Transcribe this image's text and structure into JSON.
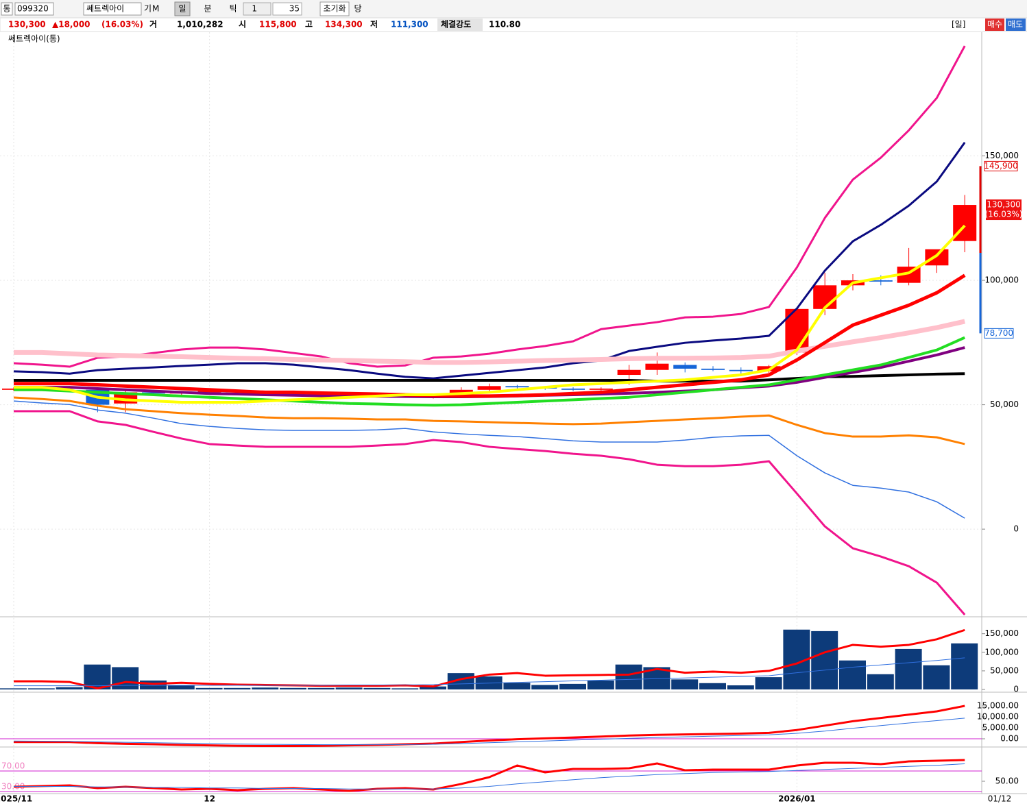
{
  "toolbar": {
    "market": "통",
    "code": "099320",
    "name": "쎄트렉아이",
    "buttons": [
      "기",
      "M"
    ],
    "periods": [
      "일",
      "분",
      "틱"
    ],
    "unit": "1",
    "count": "35",
    "reset": "초기화",
    "extra": "당"
  },
  "quote": {
    "price": "130,300",
    "change": "▲18,000",
    "rate": "(16.03%)",
    "volume_label": "거",
    "volume": "1,010,282",
    "open_label": "시",
    "open": "115,800",
    "high_label": "고",
    "high": "134,300",
    "low_label": "저",
    "low": "111,300",
    "strength_label": "체결강도",
    "strength": "110.80",
    "period": "[일]",
    "buy": "매수",
    "sell": "매도"
  },
  "current_date": "01/12",
  "chart_data": [
    {
      "type": "candlestick",
      "title": "쎄트렉아이(통)",
      "categories": [
        "2025/11",
        null,
        null,
        null,
        null,
        null,
        null,
        "12",
        null,
        null,
        null,
        null,
        null,
        null,
        null,
        null,
        null,
        null,
        null,
        null,
        null,
        null,
        null,
        null,
        null,
        null,
        null,
        null,
        "2026/01",
        null,
        null,
        null,
        null,
        null,
        null
      ],
      "open": [
        56000,
        56500,
        57000,
        56000,
        50500,
        55000,
        54500,
        55000,
        55500,
        55000,
        54500,
        54000,
        53500,
        53800,
        53500,
        53000,
        53200,
        56000,
        57500,
        57000,
        56500,
        56000,
        62000,
        64000,
        66000,
        64500,
        64000,
        63500,
        71000,
        88500,
        98000,
        100000,
        99000,
        106000,
        115800
      ],
      "high": [
        57000,
        57500,
        57500,
        56500,
        56000,
        56000,
        55500,
        56000,
        56000,
        55500,
        55000,
        54500,
        54000,
        54200,
        54000,
        53500,
        57000,
        58500,
        58000,
        57500,
        57000,
        57000,
        66000,
        71000,
        67000,
        65500,
        65000,
        66000,
        89000,
        103000,
        102500,
        102000,
        113000,
        112000,
        134300
      ],
      "low": [
        55500,
        56000,
        56000,
        47000,
        47000,
        54000,
        54000,
        54500,
        54500,
        54000,
        53500,
        53000,
        53000,
        53000,
        52800,
        52500,
        53000,
        55500,
        56500,
        56000,
        55500,
        55500,
        58000,
        62000,
        63000,
        63500,
        62500,
        62800,
        70000,
        86000,
        96000,
        98000,
        98000,
        103000,
        111300
      ],
      "close": [
        56500,
        57000,
        56500,
        50000,
        55000,
        54500,
        55000,
        55500,
        55000,
        54500,
        54000,
        53500,
        53800,
        53500,
        53000,
        53200,
        56000,
        57500,
        57000,
        56500,
        56000,
        56500,
        64000,
        66500,
        64500,
        64000,
        63500,
        65500,
        88500,
        98000,
        100000,
        99500,
        105500,
        112500,
        130300
      ],
      "up_color": "#ff0000",
      "down_color": "#1565d8",
      "series": [
        {
          "color": "#f0148c",
          "values": [
            66700,
            66100,
            65300,
            68900,
            69400,
            70800,
            72200,
            73000,
            73000,
            72200,
            70800,
            69400,
            66700,
            65300,
            65800,
            68900,
            69400,
            70500,
            72200,
            73600,
            75500,
            80400,
            81800,
            83200,
            85100,
            85400,
            86500,
            89300,
            105200,
            125100,
            140500,
            149300,
            160300,
            173300,
            194200
          ]
        },
        {
          "color": "#0a0a80",
          "values": [
            63400,
            63100,
            62500,
            63900,
            64500,
            65000,
            65600,
            66100,
            66700,
            66700,
            66100,
            65000,
            63900,
            62500,
            61200,
            60600,
            61700,
            62800,
            63900,
            65000,
            66700,
            67800,
            71600,
            73300,
            74900,
            75800,
            76600,
            77700,
            88700,
            103900,
            115700,
            122300,
            130000,
            139700,
            155400
          ]
        },
        {
          "color": "#3070e0",
          "values": [
            51500,
            50700,
            50100,
            47900,
            46600,
            44600,
            42400,
            41300,
            40500,
            39900,
            39700,
            39700,
            39700,
            39900,
            40500,
            39100,
            38300,
            37700,
            37200,
            36400,
            35500,
            35000,
            35000,
            35000,
            35800,
            36900,
            37500,
            37700,
            29500,
            22600,
            17600,
            16500,
            14900,
            11000,
            4400
          ]
        },
        {
          "color": "#ff8000",
          "values": [
            52900,
            52300,
            51500,
            49600,
            48200,
            47400,
            46600,
            46000,
            45500,
            44900,
            44600,
            44600,
            44400,
            44100,
            44100,
            43500,
            43300,
            43000,
            42700,
            42400,
            42200,
            42400,
            43000,
            43500,
            44100,
            44600,
            45200,
            45700,
            41900,
            38600,
            37200,
            37200,
            37700,
            36900,
            34200
          ]
        },
        {
          "color": "#f0148c",
          "values": [
            47400,
            47400,
            47400,
            43300,
            41900,
            39100,
            36400,
            34200,
            33600,
            33100,
            33100,
            33100,
            33100,
            33600,
            34200,
            35800,
            35000,
            33100,
            32200,
            31400,
            30300,
            29500,
            28100,
            25900,
            25300,
            25300,
            25900,
            27300,
            14300,
            1100,
            -7700,
            -11000,
            -14900,
            -21500,
            -34400
          ]
        },
        {
          "color": "#000000",
          "values": [
            59800,
            59800,
            59800,
            59800,
            59800,
            59800,
            59800,
            59800,
            59800,
            59800,
            59800,
            59800,
            59800,
            59800,
            59800,
            59800,
            59800,
            59800,
            59800,
            59800,
            59800,
            59800,
            59800,
            59500,
            59500,
            59500,
            59500,
            60000,
            60600,
            61200,
            61400,
            61700,
            62000,
            62300,
            62500
          ]
        },
        {
          "color": "#800080",
          "values": [
            57000,
            57000,
            57000,
            56500,
            56000,
            55500,
            55000,
            54500,
            54300,
            54000,
            53800,
            53600,
            53500,
            53400,
            53300,
            53200,
            53200,
            53300,
            53500,
            53800,
            54000,
            54300,
            54600,
            55000,
            55500,
            56000,
            56800,
            57500,
            59000,
            61000,
            63000,
            65000,
            67500,
            70000,
            73000
          ]
        },
        {
          "color": "#22dd22",
          "values": [
            56000,
            56000,
            55500,
            55000,
            54500,
            54000,
            53500,
            53000,
            52500,
            52000,
            51500,
            51000,
            50500,
            50300,
            50000,
            49800,
            50000,
            50500,
            51000,
            51500,
            52000,
            52500,
            53000,
            54000,
            55000,
            56000,
            57000,
            58000,
            60000,
            62000,
            64000,
            66000,
            69000,
            72000,
            77000
          ]
        },
        {
          "color": "#ffc0cb",
          "values": [
            71000,
            71000,
            70500,
            70000,
            69800,
            69500,
            69300,
            69000,
            68700,
            68500,
            68200,
            68000,
            67800,
            67500,
            67300,
            67000,
            67000,
            67200,
            67500,
            67800,
            68000,
            68200,
            68500,
            68700,
            68700,
            68800,
            69000,
            69500,
            71600,
            73500,
            75300,
            77000,
            78900,
            81000,
            83500
          ]
        },
        {
          "color": "#ff0000",
          "values": [
            58500,
            58500,
            58500,
            58000,
            57500,
            57000,
            56500,
            56000,
            55500,
            55000,
            55000,
            54700,
            54500,
            54300,
            54000,
            53700,
            53500,
            53500,
            53700,
            54000,
            54500,
            55000,
            56000,
            57000,
            58000,
            59000,
            60000,
            62000,
            68000,
            75000,
            82000,
            86000,
            90000,
            95000,
            102000
          ]
        },
        {
          "color": "#ffff00",
          "values": [
            57000,
            57000,
            56000,
            53000,
            52000,
            51500,
            51000,
            51000,
            51000,
            51500,
            52000,
            52500,
            53000,
            53500,
            54000,
            54000,
            54500,
            55000,
            56000,
            57000,
            58000,
            58500,
            59000,
            59500,
            60000,
            61000,
            62000,
            64000,
            72000,
            89000,
            99000,
            101000,
            103000,
            110000,
            122000
          ]
        }
      ],
      "ylim": [
        -34400,
        198900
      ],
      "yticks": [
        {
          "value": 150000,
          "label": "150,000"
        },
        {
          "value": 100000,
          "label": "100,000"
        },
        {
          "value": 50000,
          "label": "50,000"
        },
        0
      ],
      "grid": true,
      "limit_up": {
        "value": 145900,
        "label": "145,900"
      },
      "current": {
        "value": 130300,
        "label": "130,300",
        "rate": "(16.03%)"
      },
      "limit_down": {
        "value": 78700,
        "label": "78,700"
      }
    },
    {
      "type": "bar",
      "color": "#0d3b7a",
      "values": [
        3000,
        3000,
        6000,
        67000,
        60000,
        24000,
        11000,
        4000,
        4000,
        5000,
        4000,
        4000,
        5000,
        4000,
        3000,
        8000,
        44000,
        35000,
        18000,
        12000,
        15000,
        24000,
        67000,
        60000,
        27000,
        17000,
        11000,
        33000,
        161000,
        157000,
        78000,
        41000,
        109000,
        65000,
        124000
      ],
      "series": [
        {
          "color": "#ff0000",
          "values": [
            22000,
            22000,
            20000,
            3000,
            20000,
            15000,
            18000,
            15000,
            13000,
            12000,
            11000,
            10000,
            10000,
            10000,
            11000,
            8000,
            28000,
            40000,
            44000,
            37000,
            38000,
            39000,
            40000,
            55000,
            45000,
            48000,
            45000,
            50000,
            70000,
            100000,
            120000,
            115000,
            120000,
            135000,
            160000
          ]
        },
        {
          "color": "#3070e0",
          "values": [
            10000,
            10000,
            10000,
            10000,
            11000,
            11000,
            11000,
            11000,
            11000,
            11000,
            11000,
            11000,
            12000,
            12000,
            12000,
            13000,
            15000,
            17000,
            19000,
            21000,
            23000,
            25000,
            27000,
            29000,
            31000,
            33000,
            35000,
            37000,
            45000,
            52000,
            60000,
            66000,
            72000,
            78000,
            85000
          ]
        }
      ],
      "ylim": [
        0,
        190000
      ],
      "yticks": [
        {
          "value": 150000,
          "label": "150,000"
        },
        {
          "value": 100000,
          "label": "100,000"
        },
        {
          "value": 50000,
          "label": "50,000"
        },
        0
      ]
    },
    {
      "type": "line",
      "series": [
        {
          "color": "#ff0000",
          "values": [
            -1500,
            -1500,
            -1500,
            -2000,
            -2300,
            -2500,
            -2800,
            -3000,
            -3200,
            -3300,
            -3300,
            -3200,
            -3000,
            -2800,
            -2500,
            -2200,
            -1500,
            -800,
            -200,
            200,
            600,
            1000,
            1500,
            1800,
            2000,
            2200,
            2400,
            2700,
            4000,
            6000,
            8000,
            9500,
            11000,
            12500,
            15000
          ]
        },
        {
          "color": "#3070e0",
          "values": [
            -1000,
            -1100,
            -1200,
            -1400,
            -1600,
            -1800,
            -2000,
            -2200,
            -2400,
            -2500,
            -2600,
            -2700,
            -2700,
            -2700,
            -2600,
            -2500,
            -2200,
            -1800,
            -1400,
            -1000,
            -600,
            -200,
            200,
            600,
            900,
            1200,
            1500,
            1800,
            2500,
            3500,
            4800,
            6000,
            7200,
            8300,
            9400
          ]
        }
      ],
      "ylim": [
        -3125,
        20625
      ],
      "yticks": [
        {
          "value": 15000,
          "label": "15,000.00"
        },
        {
          "value": 10000,
          "label": "10,000.00"
        },
        {
          "value": 5000,
          "label": "5,000.00"
        },
        {
          "value": 0,
          "label": "0.00"
        }
      ]
    },
    {
      "type": "line",
      "series": [
        {
          "color": "#ff0000",
          "values": [
            39.3,
            40.7,
            42,
            36.7,
            39.3,
            36.7,
            34,
            35.3,
            32.7,
            35.3,
            36.7,
            34,
            31.3,
            35.3,
            36.7,
            34,
            44.7,
            58,
            80.7,
            67.3,
            74,
            74,
            75.3,
            84.7,
            71.3,
            72.7,
            72.7,
            72.7,
            80.7,
            86,
            86,
            83.3,
            88.7,
            90,
            91.3
          ]
        },
        {
          "color": "#3070e0",
          "values": [
            40,
            40,
            40,
            39,
            39,
            38,
            38,
            37,
            37,
            36,
            36,
            36,
            35,
            35,
            35,
            35,
            37,
            40,
            45,
            49,
            53,
            57,
            60,
            63,
            65,
            67,
            68,
            69,
            71,
            73,
            75,
            77,
            79,
            81,
            84
          ]
        }
      ],
      "ylim": [
        27.3,
        114
      ],
      "yticks": [
        {
          "value": 50,
          "label": "50.00"
        }
      ],
      "levels": [
        {
          "value": 70,
          "label": "70.00"
        },
        {
          "value": 30,
          "label": "30.00"
        }
      ]
    }
  ]
}
